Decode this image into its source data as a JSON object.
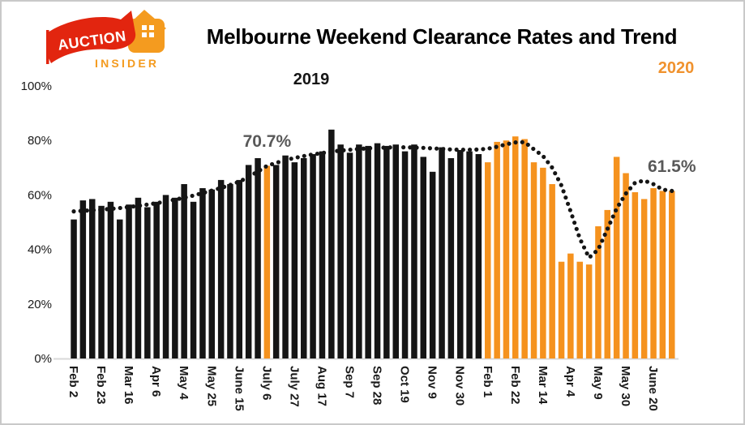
{
  "logo": {
    "brand_top": "AUCTION",
    "brand_bottom": "INSIDER"
  },
  "header": {
    "title": "Melbourne Weekend Clearance Rates and Trend",
    "year_left": "2019",
    "year_right": "2020"
  },
  "annotations": {
    "july6_label": "70.7%",
    "trend_end_label": "61.5%"
  },
  "colors": {
    "bar_2019": "#151515",
    "bar_2020": "#f5921e",
    "highlight": "#f5921e",
    "trend_line": "#151515",
    "annotation_text": "#595959",
    "axis_line": "#d9d9d9",
    "tick_text": "#1a1a1a",
    "year_right_text": "#f0922e",
    "logo_red": "#e2250f",
    "logo_orange": "#f49b1f"
  },
  "chart_data": {
    "type": "bar",
    "title": "Melbourne Weekend Clearance Rates and Trend",
    "xlabel": "",
    "ylabel": "",
    "ylim": [
      0,
      100
    ],
    "ytick_labels": [
      "100%",
      "80%",
      "60%",
      "40%",
      "20%",
      "0%"
    ],
    "grid": false,
    "legend_position": "none",
    "year2_start_index": 45,
    "highlight_index": 21,
    "categories": [
      "Feb 2",
      "",
      "",
      "Feb 23",
      "",
      "",
      "Mar 16",
      "",
      "",
      "Apr 6",
      "",
      "",
      "May 4",
      "",
      "",
      "May 25",
      "",
      "",
      "June 15",
      "",
      "",
      "July 6",
      "",
      "",
      "July 27",
      "",
      "",
      "Aug 17",
      "",
      "",
      "Sep 7",
      "",
      "",
      "Sep 28",
      "",
      "",
      "Oct 19",
      "",
      "",
      "Nov 9",
      "",
      "",
      "Nov 30",
      "",
      "",
      "Feb 1",
      "",
      "",
      "Feb 22",
      "",
      "",
      "Mar 14",
      "",
      "",
      "Apr 4",
      "",
      "",
      "May 9",
      "",
      "",
      "May 30",
      "",
      "",
      "June 20",
      "",
      ""
    ],
    "values": [
      51,
      58,
      58.5,
      56,
      57.5,
      51,
      56.5,
      59,
      55.5,
      57.5,
      60,
      59,
      64,
      57.5,
      62.5,
      62,
      65.5,
      64,
      65.5,
      71,
      73.5,
      70.7,
      71,
      74.5,
      72,
      73.5,
      75,
      76,
      84,
      78.5,
      75.5,
      78.5,
      78,
      79,
      78,
      78.5,
      76,
      78.5,
      74,
      68.5,
      77.5,
      73.5,
      76.5,
      76,
      75,
      72,
      79.5,
      80,
      81.5,
      80.5,
      72,
      70,
      64,
      35.5,
      38.5,
      35.5,
      34.5,
      48.5,
      54.5,
      74,
      68,
      61,
      58.5,
      62.5,
      61.5,
      61.5
    ],
    "series": [
      {
        "name": "2019 weekly clearance rate",
        "bar_indices": "0-44",
        "color": "#151515"
      },
      {
        "name": "2020 weekly clearance rate",
        "bar_indices": "45-65",
        "color": "#f5921e"
      }
    ],
    "trend": {
      "type": "line",
      "style": "dotted",
      "name": "Trend",
      "values": [
        54,
        54.2,
        54.4,
        54.6,
        54.9,
        55.2,
        55.6,
        56,
        56.5,
        57,
        57.6,
        58.3,
        59,
        59.8,
        60.7,
        61.6,
        62.6,
        63.7,
        64.9,
        66.6,
        68.6,
        70.7,
        71.8,
        72.8,
        73.6,
        74.3,
        74.9,
        75.4,
        75.9,
        76.3,
        76.6,
        76.9,
        77.1,
        77.3,
        77.4,
        77.5,
        77.5,
        77.4,
        77.3,
        77.1,
        76.9,
        76.7,
        76.6,
        76.6,
        76.7,
        77,
        77.7,
        78.6,
        79.3,
        79.4,
        76.8,
        74.3,
        70,
        63.5,
        54,
        44,
        37,
        40,
        47.5,
        55,
        60.5,
        64.5,
        65.3,
        64,
        62,
        61.5
      ]
    },
    "point_annotations": [
      {
        "text": "70.7%",
        "index": 21
      },
      {
        "text": "61.5%",
        "index": 65
      }
    ]
  }
}
